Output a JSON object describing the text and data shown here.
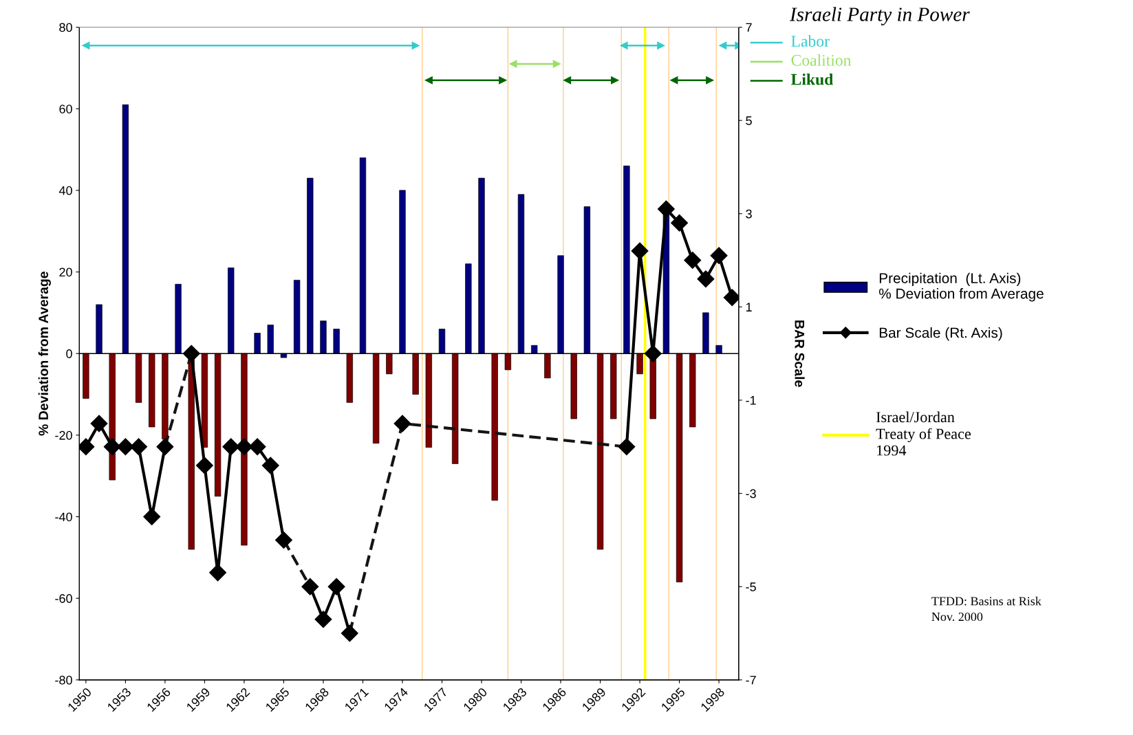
{
  "chart_data": {
    "type": "bar",
    "title": "Israeli Party in Power",
    "ylabel": "% Deviation from Average",
    "y2label": "BAR Scale",
    "x": [
      1950,
      1951,
      1952,
      1953,
      1954,
      1955,
      1956,
      1957,
      1958,
      1959,
      1960,
      1961,
      1962,
      1963,
      1964,
      1965,
      1966,
      1967,
      1968,
      1969,
      1970,
      1971,
      1972,
      1973,
      1974,
      1975,
      1976,
      1977,
      1978,
      1979,
      1980,
      1981,
      1982,
      1983,
      1984,
      1985,
      1986,
      1987,
      1988,
      1989,
      1990,
      1991,
      1992,
      1993,
      1994,
      1995,
      1996,
      1997,
      1998,
      1999
    ],
    "xlim": [
      1949.5,
      1999.5
    ],
    "xticks": [
      1950,
      1953,
      1956,
      1959,
      1962,
      1965,
      1968,
      1971,
      1974,
      1977,
      1980,
      1983,
      1986,
      1989,
      1992,
      1995,
      1998
    ],
    "ylim": [
      -80,
      80
    ],
    "yticks": [
      -80,
      -60,
      -40,
      -20,
      0,
      20,
      40,
      60,
      80
    ],
    "y2lim": [
      -7,
      7
    ],
    "y2ticks": [
      -7,
      -5,
      -3,
      -1,
      1,
      3,
      5,
      7
    ],
    "grid": false,
    "legend": "right",
    "series": [
      {
        "name": "Precipitation  (Lt. Axis)\n% Deviation from Average",
        "color": "#000080",
        "values": [
          -11,
          12,
          -31,
          61,
          -12,
          -18,
          -21,
          17,
          -48,
          -23,
          -35,
          21,
          -47,
          5,
          7,
          -1,
          18,
          43,
          8,
          6,
          -12,
          48,
          -22,
          -5,
          40,
          -10,
          -23,
          6,
          -27,
          22,
          43,
          -36,
          -4,
          39,
          2,
          -6,
          24,
          -16,
          36,
          -48,
          -16,
          46,
          -5,
          -16,
          35,
          -56,
          -18,
          10,
          2,
          null
        ],
        "colors": [
          "#800000",
          "#000080",
          "#800000",
          "#000080",
          "#800000",
          "#800000",
          "#800000",
          "#000080",
          "#800000",
          "#800000",
          "#800000",
          "#000080",
          "#800000",
          "#000080",
          "#000080",
          "#000080",
          "#000080",
          "#000080",
          "#000080",
          "#000080",
          "#800000",
          "#000080",
          "#800000",
          "#800000",
          "#000080",
          "#800000",
          "#800000",
          "#000080",
          "#800000",
          "#000080",
          "#000080",
          "#800000",
          "#800000",
          "#000080",
          "#000080",
          "#800000",
          "#000080",
          "#800000",
          "#000080",
          "#800000",
          "#800000",
          "#000080",
          "#800000",
          "#800000",
          "#000080",
          "#800000",
          "#800000",
          "#000080",
          "#000080",
          "#000080"
        ]
      },
      {
        "type": "line",
        "name": "Bar Scale (Rt. Axis)",
        "axis": "y2",
        "color": "#000000",
        "marker": "diamond",
        "line_style": "solid",
        "values": [
          -2,
          -1.5,
          -2,
          -2,
          -2,
          -3.5,
          -2,
          null,
          0,
          -2.4,
          -4.7,
          -2,
          -2,
          -2,
          -2.4,
          -4,
          null,
          -5,
          -5.7,
          -5,
          -6,
          null,
          null,
          null,
          -1.5,
          null,
          null,
          null,
          null,
          null,
          null,
          null,
          null,
          null,
          null,
          null,
          null,
          null,
          null,
          null,
          null,
          -2,
          2.2,
          0,
          3.1,
          2.8,
          2,
          1.6,
          2.1,
          1.2
        ]
      },
      {
        "type": "line",
        "axis": "y2",
        "color": "#141414",
        "marker": "none",
        "line_style": "dashed",
        "x": [
          1956,
          1958
        ],
        "values": [
          -2,
          0
        ]
      },
      {
        "type": "line",
        "axis": "y2",
        "color": "#141414",
        "marker": "none",
        "line_style": "dashed",
        "x": [
          1965,
          1967
        ],
        "values": [
          -4,
          -5
        ]
      },
      {
        "type": "line",
        "axis": "y2",
        "color": "#141414",
        "marker": "none",
        "line_style": "dashed",
        "x": [
          1970,
          1974,
          1991
        ],
        "values": [
          -6,
          -1.5,
          -2
        ]
      },
      {
        "type": "line",
        "name": "Labor",
        "color": "#33cccc",
        "marker": "triangle",
        "line_style": "solid",
        "x": [
          1950,
          1975,
          1975.5,
          1990.8,
          1993.6,
          1994,
          1998.3,
          1999.5
        ],
        "values": [
          75.5,
          75.5,
          null,
          75.5,
          75.5,
          null,
          75.5,
          75.5
        ]
      },
      {
        "type": "line",
        "name": "Coalition",
        "color": "#99e066",
        "marker": "triangle",
        "line_style": "solid",
        "x": [
          1982.4,
          1985.7
        ],
        "values": [
          71,
          71
        ]
      },
      {
        "type": "line",
        "name": "Likud",
        "color": "#006600",
        "marker": "triangle",
        "line_style": "solid",
        "x": [
          1976,
          1981.6,
          1982,
          1986.5,
          1990.1,
          1990.5,
          1994.6,
          1997.3
        ],
        "values": [
          67,
          67,
          null,
          67,
          67,
          null,
          67,
          67
        ]
      }
    ],
    "ref_lines": [
      {
        "axis": "y",
        "value": 0,
        "color": "#000000"
      },
      {
        "axis": "x",
        "value": 1975.5,
        "color": "#ffcc88"
      },
      {
        "axis": "x",
        "value": 1982.0,
        "color": "#ffcc88"
      },
      {
        "axis": "x",
        "value": 1986.2,
        "color": "#ffcc88"
      },
      {
        "axis": "x",
        "value": 1990.6,
        "color": "#ffcc88"
      },
      {
        "axis": "x",
        "value": 1992.4,
        "color": "#ffff00",
        "line_style": "solid"
      },
      {
        "axis": "x",
        "value": 1994.2,
        "color": "#ffcc88"
      },
      {
        "axis": "x",
        "value": 1997.8,
        "color": "#ffcc88"
      }
    ],
    "annotations": [
      "TFDD: Basins at Risk\nNov. 2000",
      "Israel/Jordan\nTreaty of Peace\n1994"
    ]
  }
}
